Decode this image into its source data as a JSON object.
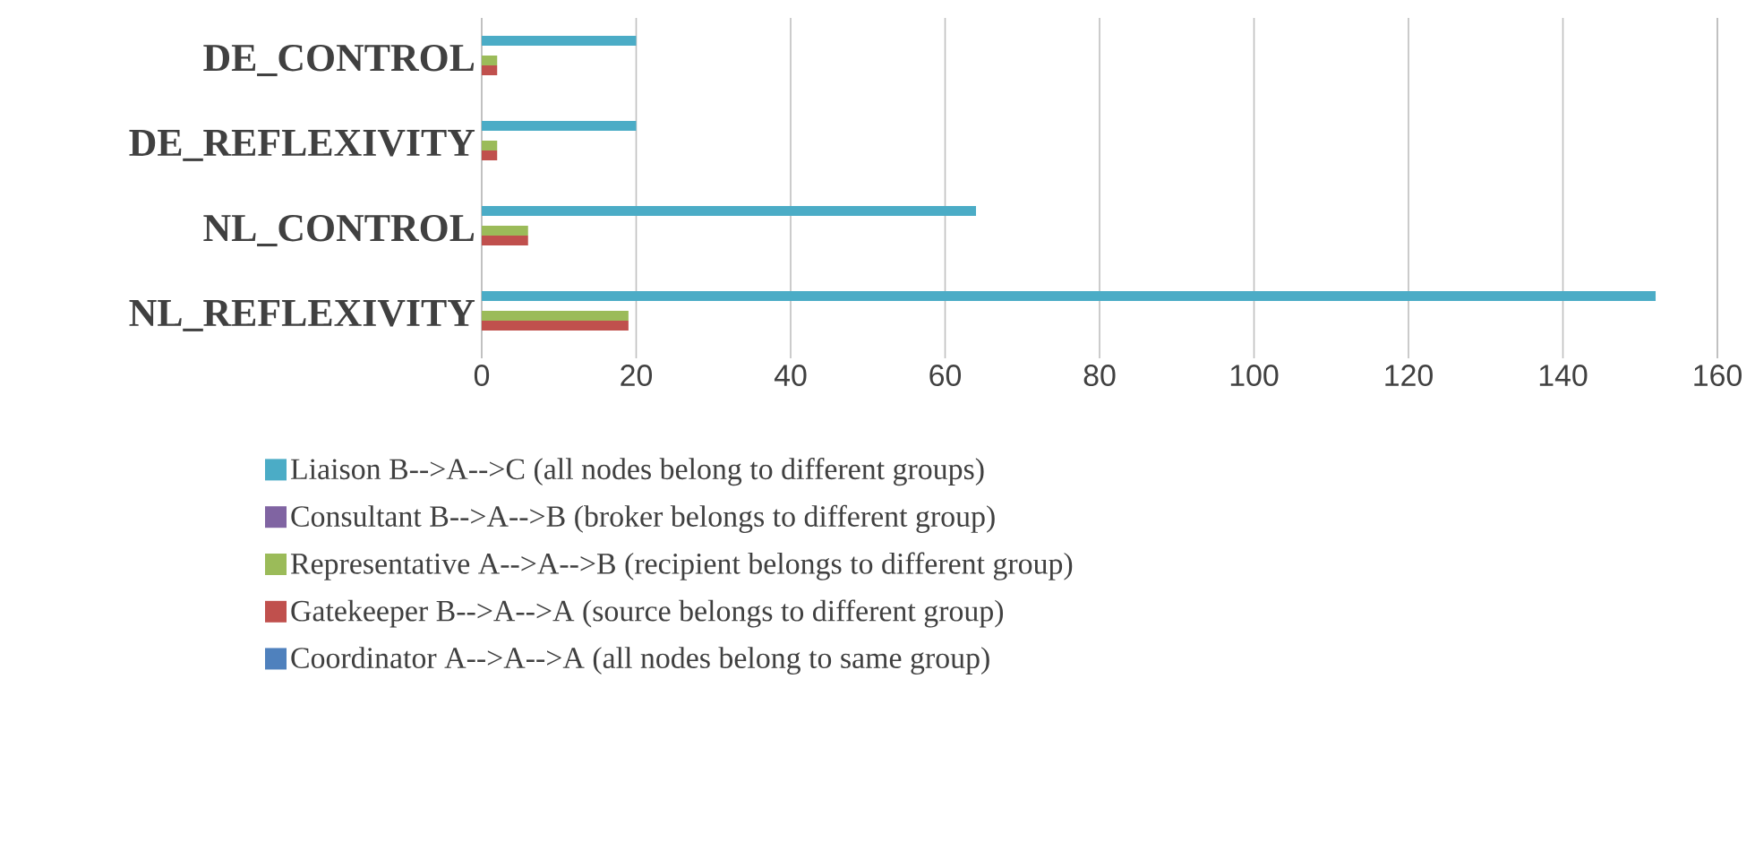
{
  "chart_data": {
    "type": "bar",
    "orientation": "horizontal",
    "categories": [
      "DE_CONTROL",
      "DE_REFLEXIVITY",
      "NL_CONTROL",
      "NL_REFLEXIVITY"
    ],
    "series": [
      {
        "name": "Coordinator  A-->A-->A  (all nodes belong to same group)",
        "color": "#4f81bd",
        "values": [
          0,
          0,
          0,
          0
        ]
      },
      {
        "name": "Gatekeeper B-->A-->A  (source belongs to different group)",
        "color": "#c0504d",
        "values": [
          2,
          2,
          6,
          19
        ]
      },
      {
        "name": "Representative A-->A-->B  (recipient belongs to different group)",
        "color": "#9bbb59",
        "values": [
          2,
          2,
          6,
          19
        ]
      },
      {
        "name": "Consultant B-->A-->B  (broker belongs to different group)",
        "color": "#8064a2",
        "values": [
          0,
          0,
          0,
          0
        ]
      },
      {
        "name": "Liaison B-->A-->C  (all nodes belong to different groups)",
        "color": "#4bacc6",
        "values": [
          20,
          20,
          64,
          152
        ]
      }
    ],
    "xlim": [
      0,
      160
    ],
    "xticks": [
      0,
      20,
      40,
      60,
      80,
      100,
      120,
      140,
      160
    ],
    "grid": "x",
    "legend": "bottom"
  }
}
